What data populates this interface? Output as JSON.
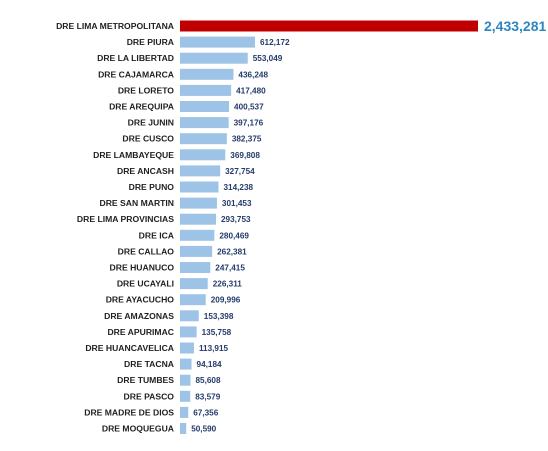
{
  "chart_data": {
    "type": "bar",
    "orientation": "horizontal",
    "categories": [
      "DRE LIMA METROPOLITANA",
      "DRE PIURA",
      "DRE LA LIBERTAD",
      "DRE CAJAMARCA",
      "DRE LORETO",
      "DRE AREQUIPA",
      "DRE JUNIN",
      "DRE CUSCO",
      "DRE LAMBAYEQUE",
      "DRE ANCASH",
      "DRE PUNO",
      "DRE SAN MARTIN",
      "DRE LIMA PROVINCIAS",
      "DRE ICA",
      "DRE CALLAO",
      "DRE HUANUCO",
      "DRE UCAYALI",
      "DRE AYACUCHO",
      "DRE AMAZONAS",
      "DRE APURIMAC",
      "DRE HUANCAVELICA",
      "DRE TACNA",
      "DRE TUMBES",
      "DRE PASCO",
      "DRE MADRE DE DIOS",
      "DRE MOQUEGUA"
    ],
    "values": [
      2433281,
      612172,
      553049,
      436248,
      417480,
      400537,
      397176,
      382375,
      369808,
      327754,
      314238,
      301453,
      293753,
      280469,
      262381,
      247415,
      226311,
      209996,
      153398,
      135758,
      113915,
      94184,
      85608,
      83579,
      67356,
      50590
    ],
    "value_labels": [
      "2,433,281",
      "612,172",
      "553,049",
      "436,248",
      "417,480",
      "400,537",
      "397,176",
      "382,375",
      "369,808",
      "327,754",
      "314,238",
      "301,453",
      "293,753",
      "280,469",
      "262,381",
      "247,415",
      "226,311",
      "209,996",
      "153,398",
      "135,758",
      "113,915",
      "94,184",
      "85,608",
      "83,579",
      "67,356",
      "50,590"
    ],
    "highlight_index": 0,
    "xlim": [
      0,
      2433281
    ],
    "grid": false,
    "legend": "none",
    "colors": {
      "bar": "#9dc3e6",
      "highlight_bar": "#c00000",
      "highlight_label": "#2e86c1",
      "value_label": "#243b6b",
      "category_label": "#1f1f1f"
    }
  }
}
